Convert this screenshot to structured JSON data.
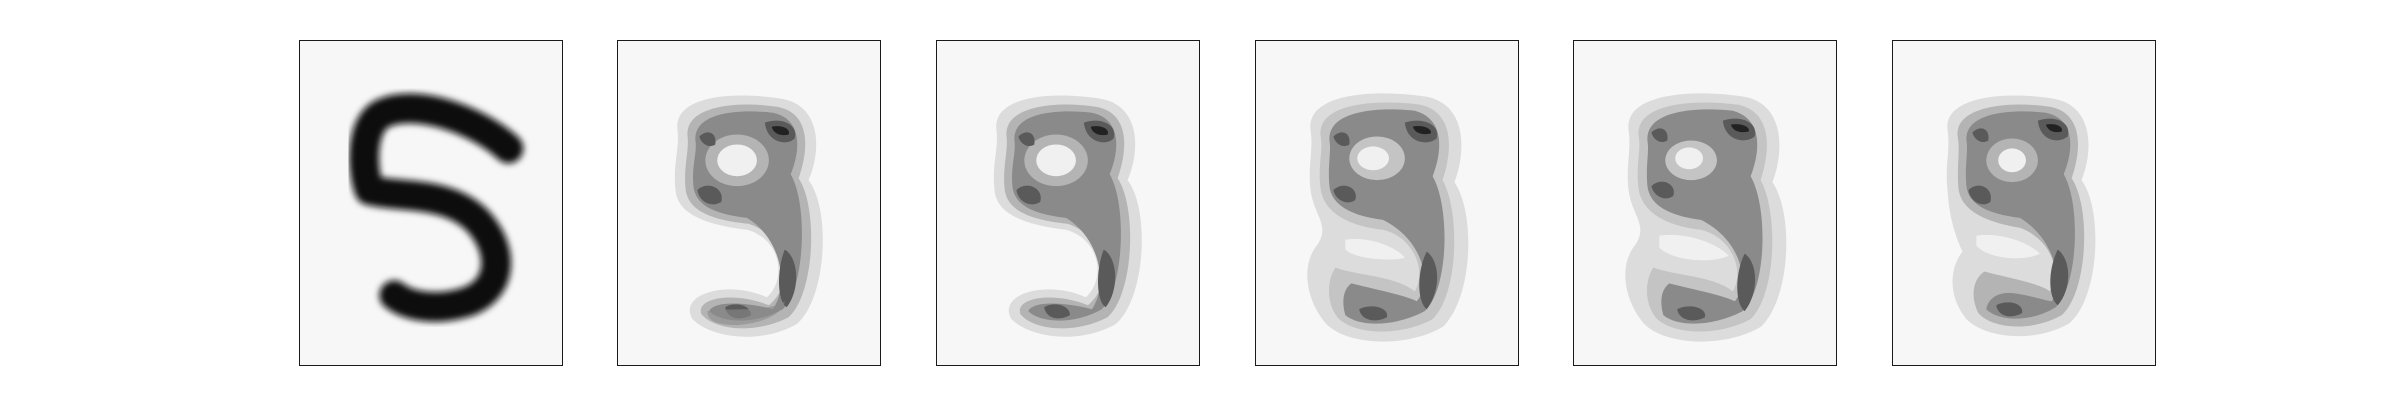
{
  "figure": {
    "panels": [
      {
        "id": "input-digit",
        "kind": "input",
        "fill_levels": [
          "#111111"
        ],
        "background": "#f7f7f7"
      },
      {
        "id": "reconstruction-1",
        "kind": "contour",
        "fill_levels": [
          "#dcdcdc",
          "#b4b4b4",
          "#8a8a8a",
          "#5a5a5a",
          "#333333",
          "#111111"
        ],
        "background": "#f7f7f7"
      },
      {
        "id": "reconstruction-2",
        "kind": "contour",
        "fill_levels": [
          "#dcdcdc",
          "#b4b4b4",
          "#8a8a8a",
          "#5a5a5a",
          "#333333",
          "#111111"
        ],
        "background": "#f7f7f7"
      },
      {
        "id": "reconstruction-3",
        "kind": "contour",
        "fill_levels": [
          "#dcdcdc",
          "#c4c4c4",
          "#8a8a8a",
          "#5a5a5a",
          "#333333",
          "#111111"
        ],
        "background": "#f7f7f7"
      },
      {
        "id": "reconstruction-4",
        "kind": "contour",
        "fill_levels": [
          "#dcdcdc",
          "#c4c4c4",
          "#8a8a8a",
          "#5a5a5a",
          "#333333",
          "#111111"
        ],
        "background": "#f7f7f7"
      },
      {
        "id": "reconstruction-5",
        "kind": "contour",
        "fill_levels": [
          "#dcdcdc",
          "#b4b4b4",
          "#8a8a8a",
          "#5a5a5a",
          "#333333",
          "#111111"
        ],
        "background": "#f7f7f7"
      }
    ]
  }
}
